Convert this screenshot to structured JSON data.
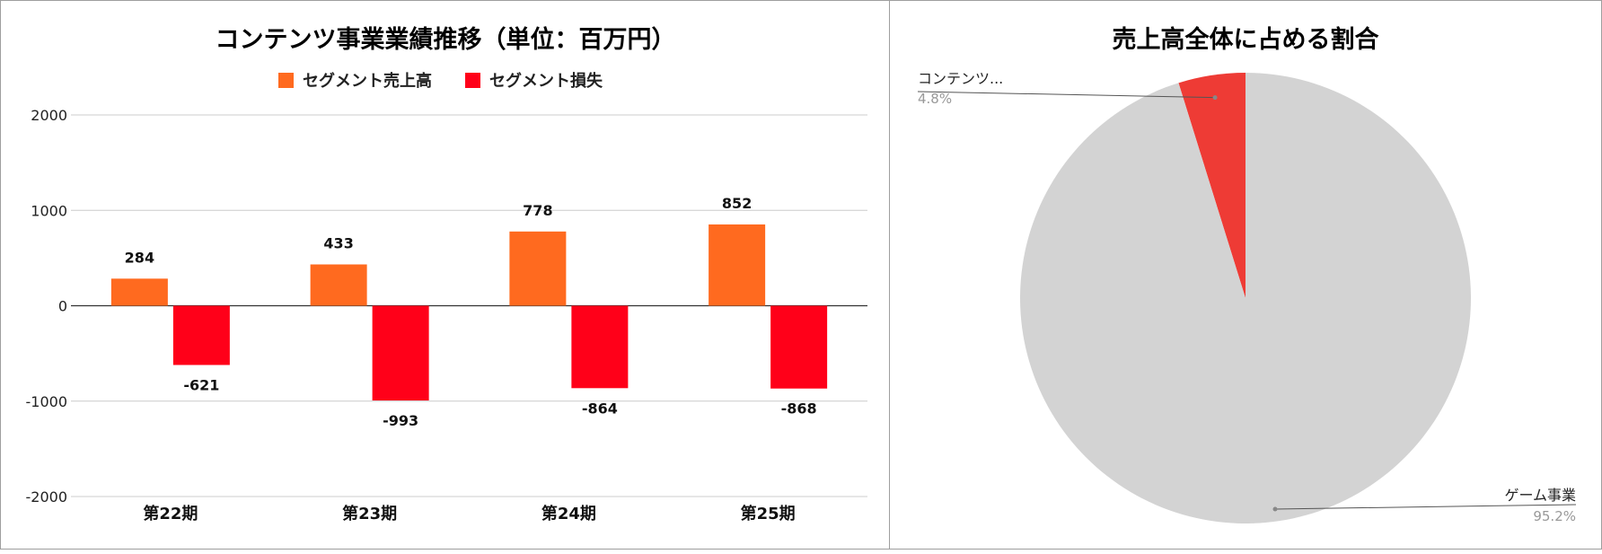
{
  "chart_data": [
    {
      "type": "bar",
      "title": "コンテンツ事業業績推移（単位：百万円）",
      "categories": [
        "第22期",
        "第23期",
        "第24期",
        "第25期"
      ],
      "series": [
        {
          "name": "セグメント売上高",
          "color": "#ff6a1f",
          "values": [
            284,
            433,
            778,
            852
          ]
        },
        {
          "name": "セグメント損失",
          "color": "#ff0019",
          "values": [
            -621,
            -993,
            -864,
            -868
          ]
        }
      ],
      "data_labels": {
        "series0": [
          "284",
          "433",
          "778",
          "852"
        ],
        "series1": [
          "-621",
          "-993",
          "-864",
          "-868"
        ]
      },
      "yticks": [
        "2000",
        "1000",
        "0",
        "-1000",
        "-2000"
      ],
      "ytick_values": [
        2000,
        1000,
        0,
        -1000,
        -2000
      ],
      "ylim": [
        -2000,
        2000
      ],
      "grid": true,
      "legend": "top"
    },
    {
      "type": "pie",
      "title": "売上高全体に占める割合",
      "slices": [
        {
          "label": "コンテンツ...",
          "percent_label": "4.8%",
          "value": 4.8,
          "color": "#ee3b35"
        },
        {
          "label": "ゲーム事業",
          "percent_label": "95.2%",
          "value": 95.2,
          "color": "#d3d3d3"
        }
      ],
      "legend": "labels"
    }
  ]
}
